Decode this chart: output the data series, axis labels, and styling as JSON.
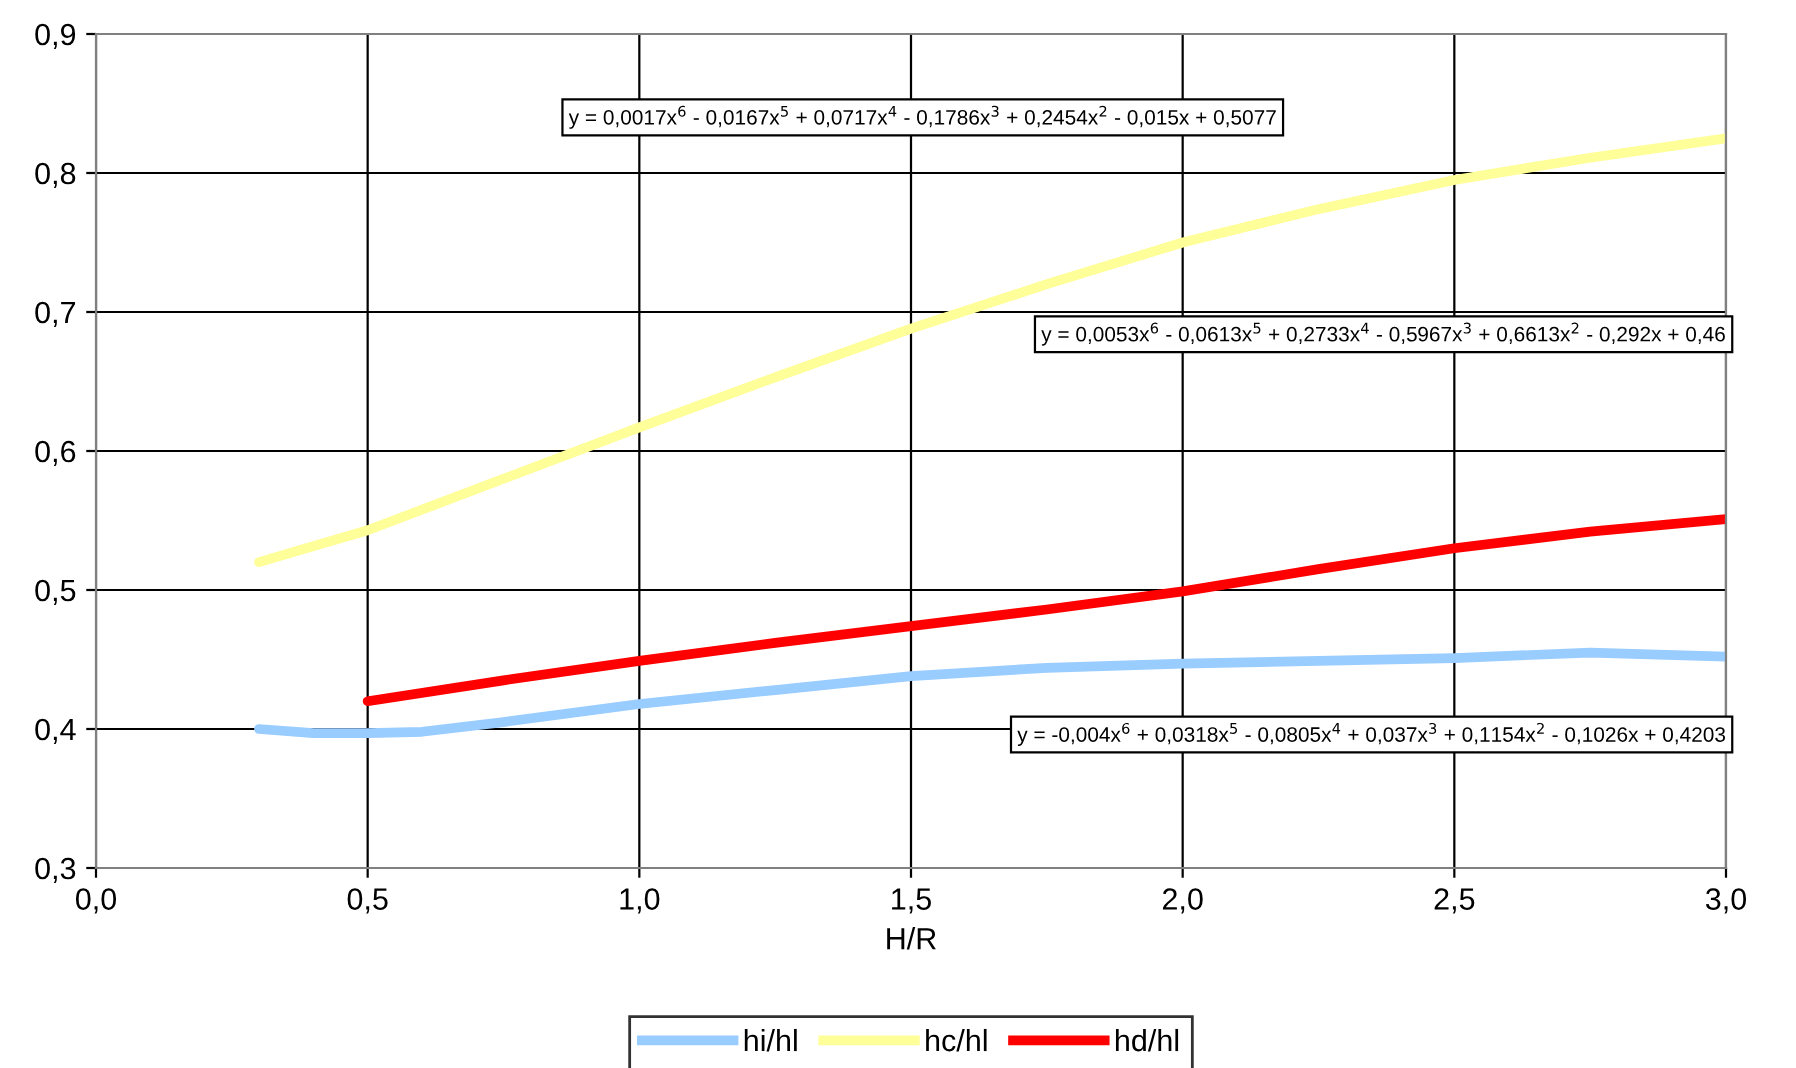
{
  "chart_data": {
    "type": "line",
    "xlabel": "H/R",
    "grid": true,
    "legend": "bottom",
    "marker": "none",
    "line_style": "solid",
    "xlim": [
      0,
      3
    ],
    "ylim": [
      0.3,
      0.9
    ],
    "xticks": [
      {
        "value": 0,
        "label": "0,0"
      },
      {
        "value": 0.5,
        "label": "0,5"
      },
      {
        "value": 1,
        "label": "1,0"
      },
      {
        "value": 1.5,
        "label": "1,5"
      },
      {
        "value": 2,
        "label": "2,0"
      },
      {
        "value": 2.5,
        "label": "2,5"
      },
      {
        "value": 3,
        "label": "3,0"
      }
    ],
    "yticks": [
      {
        "value": 0.3,
        "label": "0,3"
      },
      {
        "value": 0.4,
        "label": "0,4"
      },
      {
        "value": 0.5,
        "label": "0,5"
      },
      {
        "value": 0.6,
        "label": "0,6"
      },
      {
        "value": 0.7,
        "label": "0,7"
      },
      {
        "value": 0.8,
        "label": "0,8"
      },
      {
        "value": 0.9,
        "label": "0,9"
      }
    ],
    "series": [
      {
        "name": "hi/hl",
        "color": "#99ccff",
        "x": [
          0.3,
          0.4,
          0.5,
          0.6,
          0.75,
          1.0,
          1.25,
          1.5,
          1.75,
          2.0,
          2.25,
          2.5,
          2.75,
          3.0
        ],
        "values": [
          0.4,
          0.397,
          0.397,
          0.398,
          0.405,
          0.418,
          0.428,
          0.438,
          0.444,
          0.447,
          0.449,
          0.451,
          0.455,
          0.452
        ]
      },
      {
        "name": "hc/hl",
        "color": "#ffff99",
        "x": [
          0.3,
          0.5,
          0.75,
          1.0,
          1.25,
          1.5,
          1.75,
          2.0,
          2.25,
          2.5,
          2.75,
          3.0
        ],
        "values": [
          0.52,
          0.543,
          0.58,
          0.617,
          0.653,
          0.688,
          0.72,
          0.75,
          0.774,
          0.795,
          0.811,
          0.825
        ]
      },
      {
        "name": "hd/hl",
        "color": "#ff0000",
        "x": [
          0.5,
          0.75,
          1.0,
          1.25,
          1.5,
          1.75,
          2.0,
          2.25,
          2.5,
          2.75,
          3.0
        ],
        "values": [
          0.42,
          0.435,
          0.449,
          0.462,
          0.474,
          0.486,
          0.499,
          0.515,
          0.53,
          0.542,
          0.551
        ]
      }
    ],
    "annotations": [
      "y = 0,0017x$^{6}$ - 0,0167x$^{5}$ + 0,0717x$^{4}$ - 0,1786x$^{3}$ + 0,2454x$^{2}$ - 0,015x + 0,5077",
      "y = 0,0053x$^{6}$ - 0,0613x$^{5}$ + 0,2733x$^{4}$ - 0,5967x$^{3}$ + 0,6613x$^{2}$ - 0,292x + 0,46",
      "y = -0,004x$^{6}$ + 0,0318x$^{5}$ - 0,0805x$^{4}$ + 0,037x$^{3}$ + 0,1154x$^{2}$ - 0,1026x + 0,4203"
    ]
  }
}
